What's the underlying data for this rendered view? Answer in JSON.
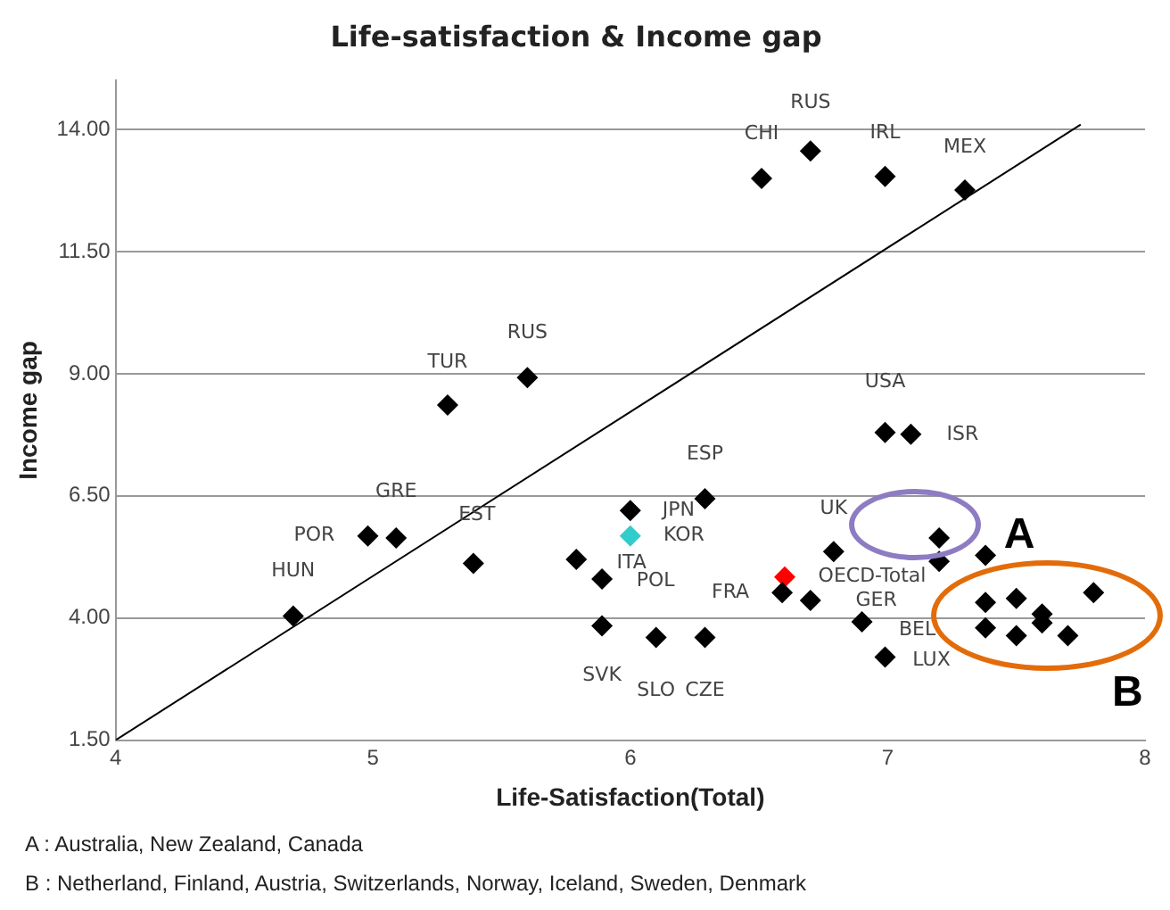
{
  "chart_data": {
    "type": "scatter",
    "title": "Life-satisfaction & Income gap",
    "xlabel": "Life-Satisfaction(Total)",
    "ylabel": "Income gap",
    "xlim": [
      4,
      8
    ],
    "xticks": [
      4,
      5,
      6,
      7,
      8
    ],
    "ylim": [
      1.5,
      15
    ],
    "yticks": [
      {
        "value": 1.5,
        "label": "1.50"
      },
      {
        "value": 4,
        "label": "4.00"
      },
      {
        "value": 6.5,
        "label": "6.50"
      },
      {
        "value": 9,
        "label": "9.00"
      },
      {
        "value": 11.5,
        "label": "11.50"
      },
      {
        "value": 14,
        "label": "14.00"
      }
    ],
    "grid": "y",
    "marker": "diamond",
    "legend": false,
    "series": [
      {
        "color": "#000000",
        "x": [
          4.69,
          4.98,
          5.09,
          5.39,
          5.29,
          5.6,
          5.79,
          5.89,
          5.89,
          6.1,
          6.0,
          6.29,
          6.29,
          6.59,
          6.7,
          6.79,
          6.9,
          6.99,
          6.99,
          7.09,
          7.2,
          7.2,
          7.38,
          7.38,
          7.5,
          7.6,
          7.8,
          7.38,
          7.5,
          7.7,
          7.6,
          6.51,
          6.7,
          6.99,
          7.3
        ],
        "values": [
          4.04,
          5.68,
          5.64,
          5.12,
          8.36,
          8.92,
          5.2,
          4.8,
          3.84,
          3.6,
          6.2,
          3.6,
          6.44,
          4.52,
          4.36,
          5.36,
          3.92,
          3.2,
          7.8,
          7.76,
          5.64,
          5.16,
          5.28,
          4.32,
          4.4,
          4.08,
          4.52,
          3.8,
          3.64,
          3.64,
          3.9,
          13.0,
          13.56,
          13.04,
          12.76
        ]
      },
      {
        "color": "#33cccc",
        "x": [
          6.0
        ],
        "values": [
          5.68
        ]
      },
      {
        "color": "#ff0000",
        "x": [
          6.6
        ],
        "values": [
          4.84
        ]
      },
      {
        "type": "line",
        "color": "#000000",
        "marker": "none",
        "x": [
          4,
          7.75
        ],
        "values": [
          1.5,
          14.1
        ]
      }
    ],
    "annotations": [
      {
        "text": "CHI",
        "x": 6.51,
        "y": 13.0
      },
      {
        "text": "RUS",
        "x": 6.7,
        "y": 13.56
      },
      {
        "text": "IRL",
        "x": 6.99,
        "y": 13.04
      },
      {
        "text": "MEX",
        "x": 7.3,
        "y": 12.76
      },
      {
        "text": "TUR",
        "x": 5.29,
        "y": 8.36
      },
      {
        "text": "RUS",
        "x": 5.6,
        "y": 8.92
      },
      {
        "text": "USA",
        "x": 6.99,
        "y": 7.8
      },
      {
        "text": "ISR",
        "x": 7.09,
        "y": 7.76
      },
      {
        "text": "GRE",
        "x": 5.09,
        "y": 5.64
      },
      {
        "text": "POR",
        "x": 4.98,
        "y": 5.68
      },
      {
        "text": "HUN",
        "x": 4.69,
        "y": 4.04
      },
      {
        "text": "EST",
        "x": 5.39,
        "y": 5.12
      },
      {
        "text": "ESP",
        "x": 6.29,
        "y": 6.44
      },
      {
        "text": "JPN",
        "x": 6.0,
        "y": 6.2
      },
      {
        "text": "KOR",
        "x": 6.0,
        "y": 5.68
      },
      {
        "text": "ITA",
        "x": 5.79,
        "y": 5.2
      },
      {
        "text": "POL",
        "x": 5.89,
        "y": 4.8
      },
      {
        "text": "UK",
        "x": 6.79,
        "y": 5.36
      },
      {
        "text": "OECD-Total",
        "x": 6.6,
        "y": 4.84
      },
      {
        "text": "FRA",
        "x": 6.59,
        "y": 4.52
      },
      {
        "text": "GER",
        "x": 6.9,
        "y": 3.92
      },
      {
        "text": "BEL",
        "x": 6.99,
        "y": 3.2
      },
      {
        "text": "LUX",
        "x": 6.99,
        "y": 3.2
      },
      {
        "text": "SVK",
        "x": 5.89,
        "y": 3.84
      },
      {
        "text": "SLO",
        "x": 6.1,
        "y": 3.6
      },
      {
        "text": "CZE",
        "x": 6.29,
        "y": 3.6
      },
      {
        "text": "A",
        "x": 7.38,
        "y": 5.28
      },
      {
        "text": "B",
        "x": 7.8,
        "y": 4.52
      },
      "A : Australia, New Zealand,  Canada",
      "B : Netherland, Finland, Austria, Switzerlands, Norway, Iceland, Sweden, Denmark"
    ]
  }
}
